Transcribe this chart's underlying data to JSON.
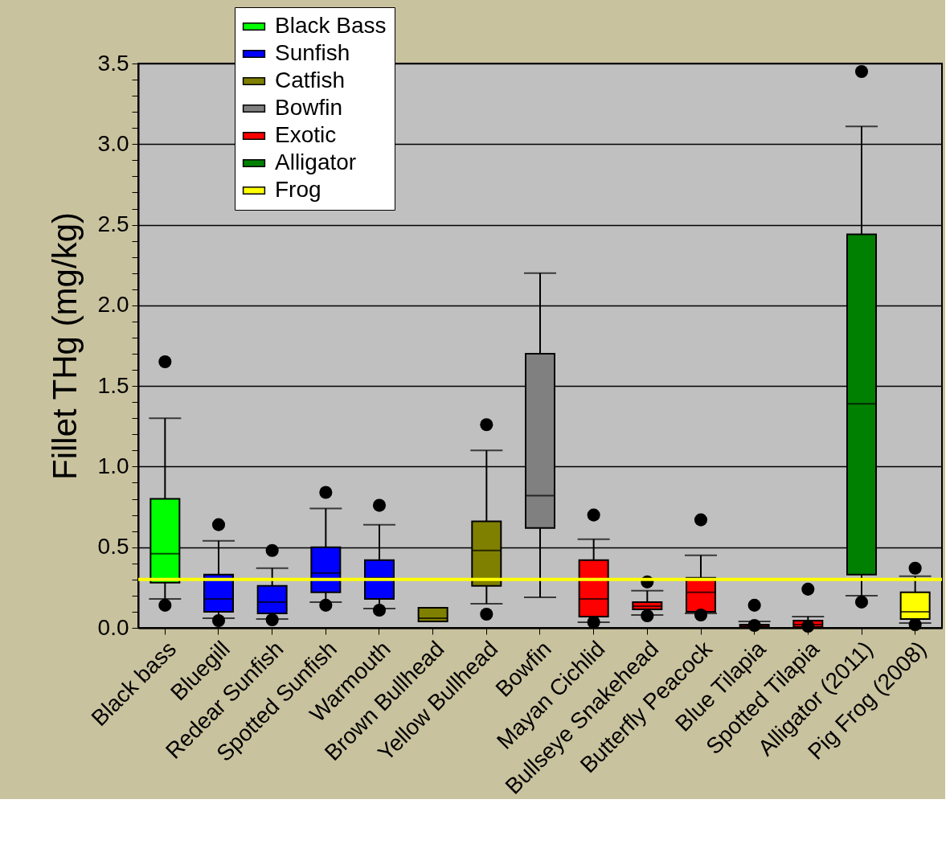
{
  "chart_data": {
    "type": "box",
    "ylabel": "Fillet THg (mg/kg)",
    "categories": [
      "Black bass",
      "Bluegill",
      "Redear Sunfish",
      "Spotted Sunfish",
      "Warmouth",
      "Brown Bullhead",
      "Yellow Bullhead",
      "Bowfin",
      "Mayan Cichlid",
      "Bullseye Snakehead",
      "Butterfly Peacock",
      "Blue Tilapia",
      "Spotted Tilapia",
      "Alligator (2011)",
      "Pig Frog (2008)"
    ],
    "series": [
      {
        "name": "Black Bass",
        "color": "#00ff00",
        "x": [
          "Black bass"
        ],
        "boxes": [
          {
            "low": 0.18,
            "q1": 0.28,
            "median": 0.46,
            "q3": 0.8,
            "high": 1.3,
            "outliers": [
              1.65,
              0.14
            ]
          }
        ]
      },
      {
        "name": "Sunfish",
        "color": "#0000ff",
        "x": [
          "Bluegill",
          "Redear Sunfish",
          "Spotted Sunfish",
          "Warmouth"
        ],
        "boxes": [
          {
            "low": 0.06,
            "q1": 0.1,
            "median": 0.18,
            "q3": 0.33,
            "high": 0.54,
            "outliers": [
              0.64,
              0.045
            ]
          },
          {
            "low": 0.055,
            "q1": 0.09,
            "median": 0.16,
            "q3": 0.26,
            "high": 0.37,
            "outliers": [
              0.48,
              0.05
            ]
          },
          {
            "low": 0.16,
            "q1": 0.22,
            "median": 0.34,
            "q3": 0.5,
            "high": 0.74,
            "outliers": [
              0.84,
              0.14
            ]
          },
          {
            "low": 0.12,
            "q1": 0.18,
            "median": 0.31,
            "q3": 0.42,
            "high": 0.64,
            "outliers": [
              0.76,
              0.11
            ]
          }
        ]
      },
      {
        "name": "Catfish",
        "color": "#808000",
        "x": [
          "Brown Bullhead",
          "Yellow Bullhead"
        ],
        "boxes": [
          {
            "low": 0.04,
            "q1": 0.04,
            "median": 0.06,
            "q3": 0.125,
            "high": 0.125
          },
          {
            "low": 0.15,
            "q1": 0.26,
            "median": 0.48,
            "q3": 0.66,
            "high": 1.1,
            "outliers": [
              1.26,
              0.085
            ]
          }
        ]
      },
      {
        "name": "Bowfin",
        "color": "#808080",
        "x": [
          "Bowfin"
        ],
        "boxes": [
          {
            "low": 0.19,
            "q1": 0.62,
            "median": 0.82,
            "q3": 1.7,
            "high": 2.2
          }
        ]
      },
      {
        "name": "Exotic",
        "color": "#ff0000",
        "x": [
          "Mayan Cichlid",
          "Bullseye Snakehead",
          "Butterfly Peacock",
          "Blue Tilapia",
          "Spotted Tilapia"
        ],
        "boxes": [
          {
            "low": 0.035,
            "q1": 0.07,
            "median": 0.18,
            "q3": 0.42,
            "high": 0.55,
            "outliers": [
              0.7,
              0.035
            ]
          },
          {
            "low": 0.08,
            "q1": 0.115,
            "median": 0.135,
            "q3": 0.16,
            "high": 0.23,
            "outliers": [
              0.285,
              0.075
            ]
          },
          {
            "low": 0.09,
            "q1": 0.1,
            "median": 0.22,
            "q3": 0.31,
            "high": 0.45,
            "outliers": [
              0.67,
              0.08
            ]
          },
          {
            "low": 0.0,
            "q1": 0.005,
            "median": 0.01,
            "q3": 0.02,
            "high": 0.04,
            "outliers": [
              0.14,
              0.015
            ]
          },
          {
            "low": 0.0,
            "q1": 0.005,
            "median": 0.02,
            "q3": 0.045,
            "high": 0.07,
            "outliers": [
              0.24,
              0.01
            ]
          }
        ]
      },
      {
        "name": "Alligator",
        "color": "#008000",
        "x": [
          "Alligator (2011)"
        ],
        "boxes": [
          {
            "low": 0.2,
            "q1": 0.33,
            "median": 1.39,
            "q3": 2.44,
            "high": 3.11,
            "outliers": [
              3.45,
              0.16
            ]
          }
        ]
      },
      {
        "name": "Frog",
        "color": "#ffff00",
        "x": [
          "Pig Frog (2008)"
        ],
        "boxes": [
          {
            "low": 0.03,
            "q1": 0.055,
            "median": 0.1,
            "q3": 0.22,
            "high": 0.32,
            "outliers": [
              0.37,
              0.02
            ]
          }
        ]
      }
    ],
    "ylim": [
      0,
      3.5
    ],
    "yticks": [
      {
        "value": 0,
        "label": "0.0"
      },
      {
        "value": 0.1,
        "label": null
      },
      {
        "value": 0.2,
        "label": null
      },
      {
        "value": 0.3,
        "label": null
      },
      {
        "value": 0.4,
        "label": null
      },
      {
        "value": 0.5,
        "label": "0.5"
      },
      {
        "value": 0.6,
        "label": null
      },
      {
        "value": 0.7,
        "label": null
      },
      {
        "value": 0.8,
        "label": null
      },
      {
        "value": 0.9,
        "label": null
      },
      {
        "value": 1,
        "label": "1.0"
      },
      {
        "value": 1.1,
        "label": null
      },
      {
        "value": 1.2,
        "label": null
      },
      {
        "value": 1.3,
        "label": null
      },
      {
        "value": 1.4,
        "label": null
      },
      {
        "value": 1.5,
        "label": "1.5"
      },
      {
        "value": 1.6,
        "label": null
      },
      {
        "value": 1.7,
        "label": null
      },
      {
        "value": 1.8,
        "label": null
      },
      {
        "value": 1.9,
        "label": null
      },
      {
        "value": 2,
        "label": "2.0"
      },
      {
        "value": 2.1,
        "label": null
      },
      {
        "value": 2.2,
        "label": null
      },
      {
        "value": 2.3,
        "label": null
      },
      {
        "value": 2.4,
        "label": null
      },
      {
        "value": 2.5,
        "label": "2.5"
      },
      {
        "value": 2.6,
        "label": null
      },
      {
        "value": 2.7,
        "label": null
      },
      {
        "value": 2.8,
        "label": null
      },
      {
        "value": 2.9,
        "label": null
      },
      {
        "value": 3,
        "label": "3.0"
      },
      {
        "value": 3.1,
        "label": null
      },
      {
        "value": 3.2,
        "label": null
      },
      {
        "value": 3.3,
        "label": null
      },
      {
        "value": 3.4,
        "label": null
      },
      {
        "value": 3.5,
        "label": "3.5"
      }
    ],
    "ref_lines": [
      {
        "axis": "y",
        "value": 0.3,
        "color": "#ffff00"
      }
    ],
    "grid": "y",
    "legend": "top left"
  }
}
